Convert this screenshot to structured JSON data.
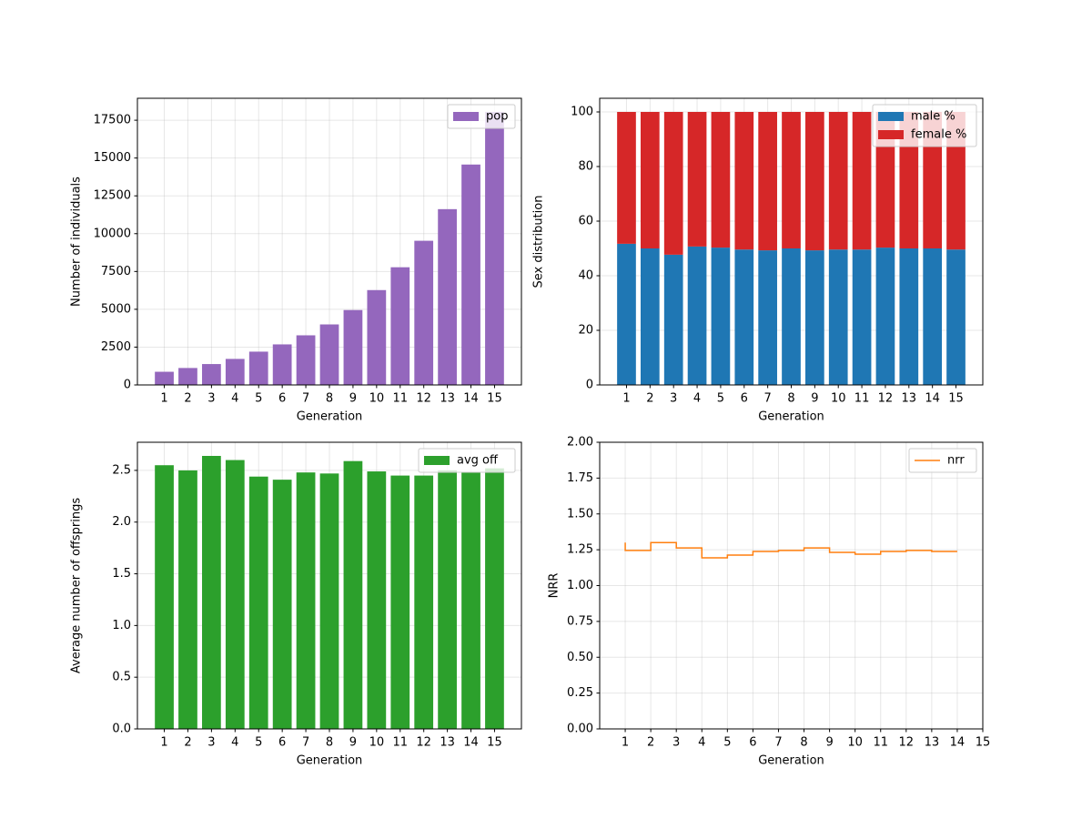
{
  "chart_data": [
    {
      "type": "bar",
      "xlabel": "Generation",
      "ylabel": "Number of individuals",
      "x": [
        1,
        2,
        3,
        4,
        5,
        6,
        7,
        8,
        9,
        10,
        11,
        12,
        13,
        14,
        15
      ],
      "series": [
        {
          "name": "pop",
          "color": "#9467bd",
          "values": [
            870,
            1120,
            1380,
            1720,
            2200,
            2680,
            3280,
            4000,
            4950,
            6270,
            7780,
            9530,
            11620,
            14570,
            18050
          ]
        }
      ],
      "xlim": [
        -0.14,
        16.14
      ],
      "xticks": [
        1,
        2,
        3,
        4,
        5,
        6,
        7,
        8,
        9,
        10,
        11,
        12,
        13,
        14,
        15
      ],
      "ylim": [
        0,
        18950
      ],
      "yticks": [
        0,
        2500,
        5000,
        7500,
        10000,
        12500,
        15000,
        17500
      ],
      "grid": true,
      "legend": "upper right"
    },
    {
      "type": "stacked_bar",
      "xlabel": "Generation",
      "ylabel": "Sex distribution",
      "x": [
        1,
        2,
        3,
        4,
        5,
        6,
        7,
        8,
        9,
        10,
        11,
        12,
        13,
        14,
        15
      ],
      "series": [
        {
          "name": "male %",
          "color": "#1f77b4",
          "values": [
            51.7,
            50,
            47.7,
            50.7,
            50.3,
            49.6,
            49.3,
            50,
            49.3,
            49.6,
            49.6,
            50.3,
            50,
            50,
            49.6
          ]
        },
        {
          "name": "female %",
          "color": "#d62728",
          "values": [
            48.3,
            50,
            52.3,
            49.3,
            49.7,
            50.4,
            50.7,
            50,
            50.7,
            50.4,
            50.4,
            49.7,
            50,
            50,
            50.4
          ]
        }
      ],
      "xlim": [
        -0.14,
        16.14
      ],
      "xticks": [
        1,
        2,
        3,
        4,
        5,
        6,
        7,
        8,
        9,
        10,
        11,
        12,
        13,
        14,
        15
      ],
      "ylim": [
        0,
        105
      ],
      "yticks": [
        0,
        20,
        40,
        60,
        80,
        100
      ],
      "grid": true,
      "legend": "upper right"
    },
    {
      "type": "bar",
      "xlabel": "Generation",
      "ylabel": "Average number of offsprings",
      "x": [
        1,
        2,
        3,
        4,
        5,
        6,
        7,
        8,
        9,
        10,
        11,
        12,
        13,
        14,
        15
      ],
      "series": [
        {
          "name": "avg off",
          "color": "#2ca02c",
          "values": [
            2.55,
            2.5,
            2.64,
            2.6,
            2.44,
            2.41,
            2.48,
            2.47,
            2.59,
            2.49,
            2.45,
            2.45,
            2.5,
            2.48,
            2.52
          ]
        }
      ],
      "xlim": [
        -0.14,
        16.14
      ],
      "xticks": [
        1,
        2,
        3,
        4,
        5,
        6,
        7,
        8,
        9,
        10,
        11,
        12,
        13,
        14,
        15
      ],
      "ylim": [
        0,
        2.772
      ],
      "yticks": [
        {
          "value": 0,
          "label": "0.0"
        },
        0.5,
        {
          "value": 1,
          "label": "1.0"
        },
        1.5,
        {
          "value": 2,
          "label": "2.0"
        },
        2.5
      ],
      "grid": true,
      "legend": "upper right"
    },
    {
      "type": "line",
      "step": "pre",
      "xlabel": "Generation",
      "ylabel": "NRR",
      "x": [
        1,
        2,
        3,
        4,
        5,
        6,
        7,
        8,
        9,
        10,
        11,
        12,
        13,
        14
      ],
      "series": [
        {
          "name": "nrr",
          "color": "#ff7f0e",
          "values": [
            1.3,
            1.245,
            1.3,
            1.263,
            1.194,
            1.213,
            1.238,
            1.245,
            1.263,
            1.232,
            1.219,
            1.238,
            1.245,
            1.238
          ]
        }
      ],
      "xlim": [
        0,
        15
      ],
      "xticks": [
        1,
        2,
        3,
        4,
        5,
        6,
        7,
        8,
        9,
        10,
        11,
        12,
        13,
        14,
        15
      ],
      "ylim": [
        0,
        2
      ],
      "yticks": [
        {
          "value": 0,
          "label": "0.00"
        },
        {
          "value": 0.25,
          "label": "0.25"
        },
        {
          "value": 0.5,
          "label": "0.50"
        },
        {
          "value": 0.75,
          "label": "0.75"
        },
        {
          "value": 1,
          "label": "1.00"
        },
        {
          "value": 1.25,
          "label": "1.25"
        },
        {
          "value": 1.5,
          "label": "1.50"
        },
        {
          "value": 1.75,
          "label": "1.75"
        },
        {
          "value": 2,
          "label": "2.00"
        }
      ],
      "grid": true,
      "legend": "upper right"
    }
  ]
}
